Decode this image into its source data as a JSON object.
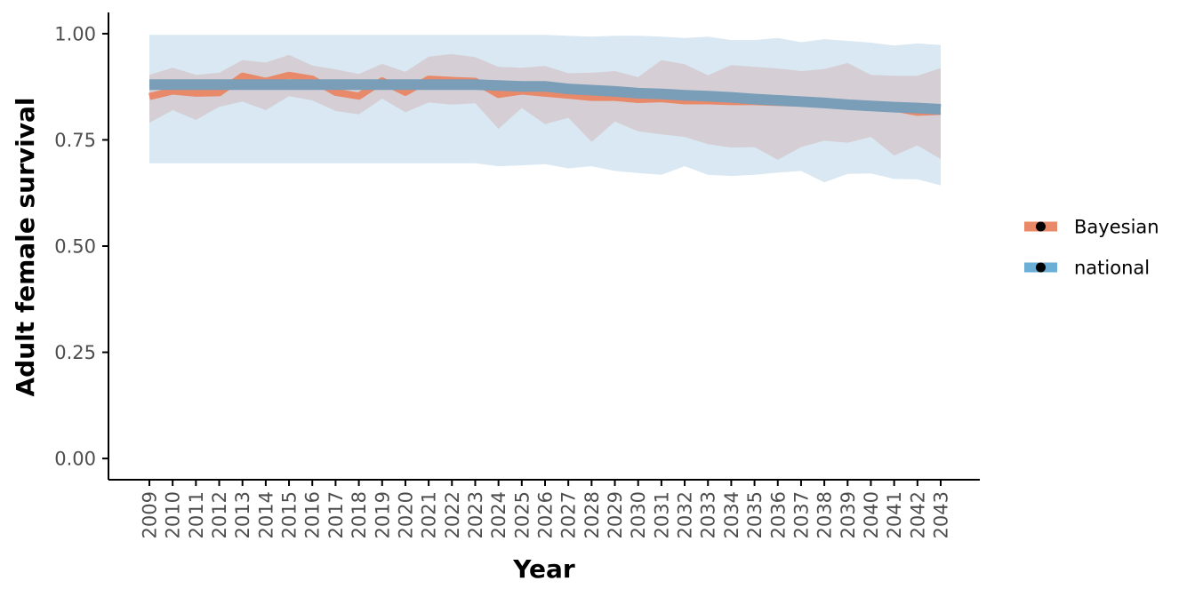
{
  "chart_data": {
    "type": "line",
    "title": "",
    "xlabel": "Year",
    "ylabel": "Adult female survival",
    "x": [
      2009,
      2010,
      2011,
      2012,
      2013,
      2014,
      2015,
      2016,
      2017,
      2018,
      2019,
      2020,
      2021,
      2022,
      2023,
      2024,
      2025,
      2026,
      2027,
      2028,
      2029,
      2030,
      2031,
      2032,
      2033,
      2034,
      2035,
      2036,
      2037,
      2038,
      2039,
      2040,
      2041,
      2042,
      2043
    ],
    "x_tick_labels": [
      "2009",
      "2010",
      "2011",
      "2012",
      "2013",
      "2014",
      "2015",
      "2016",
      "2017",
      "2018",
      "2019",
      "2020",
      "2021",
      "2022",
      "2023",
      "2024",
      "2025",
      "2026",
      "2027",
      "2028",
      "2029",
      "2030",
      "2031",
      "2032",
      "2033",
      "2034",
      "2035",
      "2036",
      "2037",
      "2038",
      "2039",
      "2040",
      "2041",
      "2042",
      "2043"
    ],
    "ylim": [
      -0.05,
      1.05
    ],
    "y_ticks": [
      0.0,
      0.25,
      0.5,
      0.75,
      1.0
    ],
    "y_tick_labels": [
      "0.00",
      "0.25",
      "0.50",
      "0.75",
      "1.00"
    ],
    "grid": false,
    "legend_position": "right",
    "series": [
      {
        "name": "Bayesian",
        "color": "#E8896A",
        "ribbon_color": "#D5CFD5",
        "values": [
          0.852,
          0.865,
          0.86,
          0.861,
          0.9,
          0.888,
          0.902,
          0.893,
          0.862,
          0.853,
          0.889,
          0.862,
          0.893,
          0.89,
          0.888,
          0.857,
          0.865,
          0.86,
          0.855,
          0.85,
          0.85,
          0.845,
          0.847,
          0.842,
          0.842,
          0.84,
          0.84,
          0.838,
          0.837,
          0.838,
          0.836,
          0.832,
          0.825,
          0.815,
          0.817
        ],
        "lower": [
          0.79,
          0.82,
          0.797,
          0.828,
          0.84,
          0.82,
          0.853,
          0.843,
          0.818,
          0.81,
          0.847,
          0.815,
          0.838,
          0.833,
          0.836,
          0.776,
          0.825,
          0.787,
          0.802,
          0.745,
          0.793,
          0.77,
          0.763,
          0.757,
          0.74,
          0.732,
          0.733,
          0.703,
          0.733,
          0.748,
          0.743,
          0.757,
          0.713,
          0.737,
          0.705
        ],
        "upper": [
          0.903,
          0.92,
          0.903,
          0.908,
          0.938,
          0.932,
          0.95,
          0.925,
          0.916,
          0.905,
          0.929,
          0.91,
          0.946,
          0.952,
          0.945,
          0.922,
          0.92,
          0.924,
          0.907,
          0.908,
          0.912,
          0.898,
          0.938,
          0.928,
          0.902,
          0.926,
          0.922,
          0.918,
          0.912,
          0.917,
          0.931,
          0.903,
          0.901,
          0.901,
          0.919
        ]
      },
      {
        "name": "national",
        "color": "#6BAED6",
        "line_color": "#7A9DB8",
        "ribbon_color": "#D9E8F2",
        "values": [
          0.88,
          0.88,
          0.88,
          0.88,
          0.88,
          0.88,
          0.88,
          0.88,
          0.88,
          0.88,
          0.88,
          0.88,
          0.88,
          0.88,
          0.88,
          0.878,
          0.876,
          0.876,
          0.87,
          0.867,
          0.864,
          0.86,
          0.858,
          0.855,
          0.853,
          0.85,
          0.846,
          0.843,
          0.84,
          0.837,
          0.833,
          0.83,
          0.827,
          0.825,
          0.822
        ],
        "lower": [
          0.695,
          0.695,
          0.695,
          0.695,
          0.695,
          0.695,
          0.695,
          0.695,
          0.695,
          0.695,
          0.695,
          0.695,
          0.695,
          0.695,
          0.695,
          0.688,
          0.69,
          0.693,
          0.683,
          0.688,
          0.677,
          0.672,
          0.668,
          0.688,
          0.668,
          0.665,
          0.668,
          0.673,
          0.677,
          0.65,
          0.67,
          0.671,
          0.658,
          0.657,
          0.643
        ],
        "upper": [
          0.997,
          0.997,
          0.997,
          0.997,
          0.997,
          0.997,
          0.997,
          0.997,
          0.997,
          0.997,
          0.997,
          0.997,
          0.997,
          0.997,
          0.997,
          0.997,
          0.997,
          0.997,
          0.995,
          0.993,
          0.995,
          0.995,
          0.993,
          0.99,
          0.993,
          0.985,
          0.985,
          0.99,
          0.98,
          0.987,
          0.983,
          0.979,
          0.972,
          0.977,
          0.973
        ]
      }
    ]
  }
}
